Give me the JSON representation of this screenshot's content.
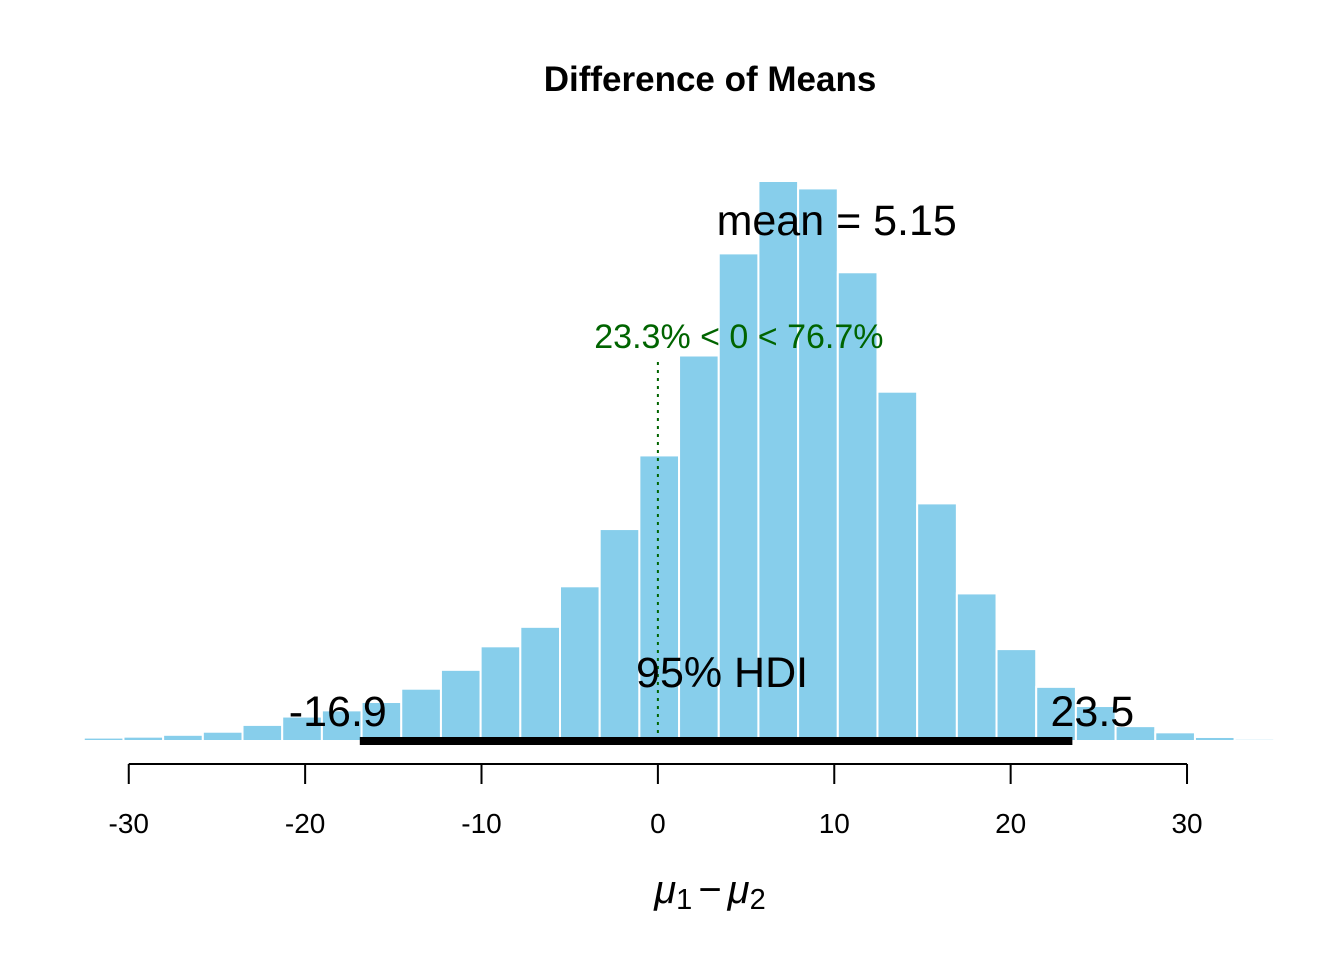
{
  "chart_data": {
    "type": "bar",
    "title": "Difference of Means",
    "xlabel": {
      "mu": "μ",
      "sub1": "1",
      "minus": "−",
      "sub2": "2"
    },
    "xlim": [
      -37.3,
      38.9
    ],
    "x_ticks": [
      -30,
      -20,
      -10,
      0,
      10,
      20,
      30
    ],
    "bin_width": 2.25,
    "bins": [
      {
        "start": -37.05,
        "count": 0.3
      },
      {
        "start": -34.8,
        "count": 0.5
      },
      {
        "start": -32.55,
        "count": 1.1
      },
      {
        "start": -30.3,
        "count": 1.4
      },
      {
        "start": -28.05,
        "count": 2.0
      },
      {
        "start": -25.8,
        "count": 3.0
      },
      {
        "start": -23.55,
        "count": 5.2
      },
      {
        "start": -21.3,
        "count": 7.9
      },
      {
        "start": -19.05,
        "count": 9.9
      },
      {
        "start": -16.8,
        "count": 12.6
      },
      {
        "start": -14.55,
        "count": 16.9
      },
      {
        "start": -12.3,
        "count": 23.0
      },
      {
        "start": -10.05,
        "count": 30.6
      },
      {
        "start": -7.8,
        "count": 36.9
      },
      {
        "start": -5.55,
        "count": 50.0
      },
      {
        "start": -3.3,
        "count": 68.5
      },
      {
        "start": -1.05,
        "count": 92.3
      },
      {
        "start": 1.2,
        "count": 124.6
      },
      {
        "start": 3.45,
        "count": 157.6
      },
      {
        "start": 5.7,
        "count": 181.0
      },
      {
        "start": 7.95,
        "count": 178.6
      },
      {
        "start": 10.2,
        "count": 151.5
      },
      {
        "start": 12.45,
        "count": 112.9
      },
      {
        "start": 14.7,
        "count": 76.8
      },
      {
        "start": 16.95,
        "count": 47.7
      },
      {
        "start": 19.2,
        "count": 29.7
      },
      {
        "start": 21.45,
        "count": 17.5
      },
      {
        "start": 23.7,
        "count": 11.3
      },
      {
        "start": 25.95,
        "count": 4.8
      },
      {
        "start": 28.2,
        "count": 2.8
      },
      {
        "start": 30.45,
        "count": 1.3
      },
      {
        "start": 32.7,
        "count": 0.7
      },
      {
        "start": 34.95,
        "count": 0.3
      },
      {
        "start": 37.2,
        "count": 0.2
      }
    ],
    "ylim": [
      0,
      181
    ],
    "mean": 5.15,
    "mean_label": "mean = 5.15",
    "comparison": {
      "value": 0,
      "label": "23.3% < 0 < 76.7%"
    },
    "hdi": {
      "low": -16.9,
      "high": 23.5,
      "low_label": "-16.9",
      "high_label": "23.5",
      "label": "95% HDI"
    },
    "colors": {
      "bar": "#87CEEB",
      "bar_border": "#ffffff",
      "comparison": "#006400",
      "hdi": "#000000",
      "axis": "#000000"
    },
    "grid": false,
    "legend": "none"
  }
}
